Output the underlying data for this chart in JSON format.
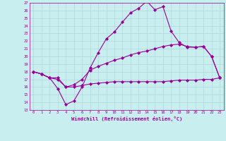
{
  "xlabel": "Windchill (Refroidissement éolien,°C)",
  "xlim": [
    -0.5,
    23.5
  ],
  "ylim": [
    13,
    27
  ],
  "yticks": [
    13,
    14,
    15,
    16,
    17,
    18,
    19,
    20,
    21,
    22,
    23,
    24,
    25,
    26,
    27
  ],
  "xticks": [
    0,
    1,
    2,
    3,
    4,
    5,
    6,
    7,
    8,
    9,
    10,
    11,
    12,
    13,
    14,
    15,
    16,
    17,
    18,
    19,
    20,
    21,
    22,
    23
  ],
  "background_color": "#c8eef0",
  "grid_color": "#b0d8d8",
  "line_color": "#990099",
  "line1_x": [
    0,
    1,
    2,
    3,
    4,
    5,
    6,
    7,
    8,
    9,
    10,
    11,
    12,
    13,
    14,
    15,
    16,
    17,
    18,
    19,
    20,
    21,
    22,
    23
  ],
  "line1_y": [
    18.0,
    17.7,
    17.2,
    15.8,
    13.7,
    14.2,
    16.0,
    18.5,
    20.5,
    22.3,
    23.2,
    24.5,
    25.7,
    26.3,
    27.2,
    26.1,
    26.5,
    23.3,
    21.8,
    21.2,
    21.2,
    21.3,
    20.0,
    17.2
  ],
  "line2_x": [
    0,
    1,
    2,
    3,
    4,
    5,
    6,
    7,
    8,
    9,
    10,
    11,
    12,
    13,
    14,
    15,
    16,
    17,
    18,
    19,
    20,
    21,
    22,
    23
  ],
  "line2_y": [
    18.0,
    17.7,
    17.2,
    17.2,
    16.0,
    16.3,
    17.0,
    18.2,
    18.7,
    19.1,
    19.5,
    19.8,
    20.2,
    20.5,
    20.7,
    21.0,
    21.3,
    21.5,
    21.6,
    21.3,
    21.2,
    21.3,
    20.0,
    17.2
  ],
  "line3_x": [
    0,
    1,
    2,
    3,
    4,
    5,
    6,
    7,
    8,
    9,
    10,
    11,
    12,
    13,
    14,
    15,
    16,
    17,
    18,
    19,
    20,
    21,
    22,
    23
  ],
  "line3_y": [
    18.0,
    17.7,
    17.2,
    17.0,
    16.0,
    16.0,
    16.2,
    16.4,
    16.5,
    16.6,
    16.7,
    16.7,
    16.7,
    16.7,
    16.7,
    16.7,
    16.7,
    16.8,
    16.9,
    16.9,
    16.9,
    17.0,
    17.0,
    17.2
  ],
  "marker": "D",
  "marker_size": 2.0,
  "linewidth": 0.8
}
